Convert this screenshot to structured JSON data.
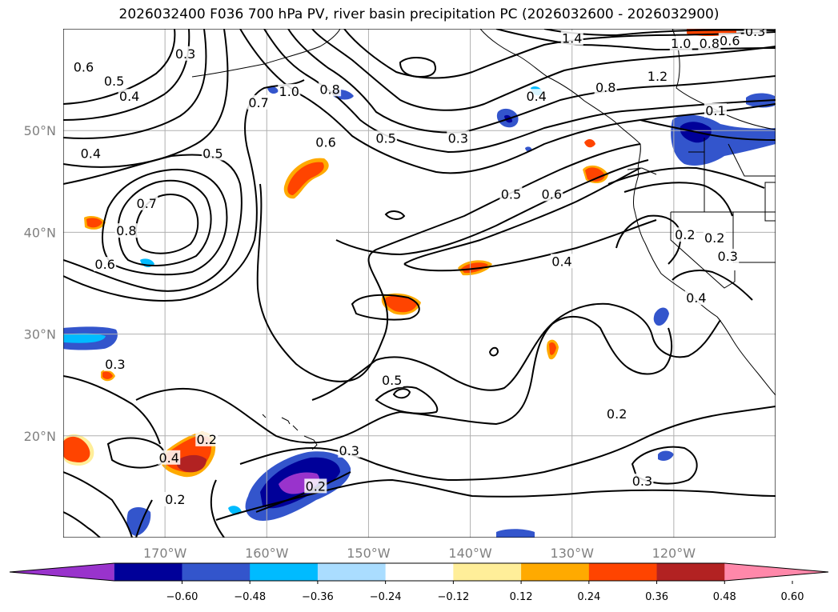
{
  "title": "2026032400 F036 700 hPa PV, river basin precipitation PC (2026032600 - 2026032900)",
  "map": {
    "lon_labels": [
      "170°W",
      "160°W",
      "150°W",
      "140°W",
      "130°W",
      "120°W"
    ],
    "lat_labels": [
      "50°N",
      "40°N",
      "30°N",
      "20°N"
    ],
    "lon_values": [
      -170,
      -160,
      -150,
      -140,
      -130,
      -120
    ],
    "lat_values": [
      50,
      40,
      30,
      20
    ],
    "lon_range": [
      -180,
      -110
    ],
    "lat_range": [
      10,
      60
    ],
    "contour_labels": [
      "0.6",
      "0.5",
      "0.4",
      "0.3",
      "0.7",
      "1.0",
      "0.8",
      "0.5",
      "0.3",
      "1.4",
      "1.0",
      "0.8",
      "0.6",
      "0.3",
      "0.4",
      "0.8",
      "1.2",
      "0.1",
      "0.4",
      "0.5",
      "0.6",
      "0.7",
      "0.8",
      "0.6",
      "0.5",
      "0.6",
      "0.4",
      "0.2",
      "0.3",
      "0.4",
      "0.3",
      "0.5",
      "0.4",
      "0.2",
      "0.3",
      "0.2",
      "0.2",
      "0.3",
      "0.2",
      "0.3"
    ],
    "contour_label_positions": [
      {
        "text": "0.6",
        "lon": -178.0,
        "lat": 56.2
      },
      {
        "text": "0.5",
        "lon": -175.0,
        "lat": 54.8
      },
      {
        "text": "0.4",
        "lon": -173.5,
        "lat": 53.3
      },
      {
        "text": "0.3",
        "lon": -168.0,
        "lat": 57.5
      },
      {
        "text": "0.7",
        "lon": -160.8,
        "lat": 52.7
      },
      {
        "text": "1.0",
        "lon": -157.8,
        "lat": 53.8
      },
      {
        "text": "0.8",
        "lon": -153.8,
        "lat": 54.0
      },
      {
        "text": "0.5",
        "lon": -148.3,
        "lat": 49.2
      },
      {
        "text": "0.3",
        "lon": -141.2,
        "lat": 49.2
      },
      {
        "text": "1.4",
        "lon": -130.0,
        "lat": 59.0
      },
      {
        "text": "1.0",
        "lon": -119.3,
        "lat": 58.5
      },
      {
        "text": "0.8",
        "lon": -116.5,
        "lat": 58.5
      },
      {
        "text": "0.6",
        "lon": -114.5,
        "lat": 58.8
      },
      {
        "text": "0.3",
        "lon": -112.0,
        "lat": 59.7
      },
      {
        "text": "0.4",
        "lon": -133.5,
        "lat": 53.3
      },
      {
        "text": "0.8",
        "lon": -126.7,
        "lat": 54.2
      },
      {
        "text": "1.2",
        "lon": -121.6,
        "lat": 55.3
      },
      {
        "text": "0.1",
        "lon": -115.9,
        "lat": 51.9
      },
      {
        "text": "0.4",
        "lon": -177.3,
        "lat": 47.7
      },
      {
        "text": "0.5",
        "lon": -165.3,
        "lat": 47.7
      },
      {
        "text": "0.6",
        "lon": -154.2,
        "lat": 48.8
      },
      {
        "text": "0.7",
        "lon": -171.8,
        "lat": 42.8
      },
      {
        "text": "0.8",
        "lon": -173.8,
        "lat": 40.1
      },
      {
        "text": "0.6",
        "lon": -175.9,
        "lat": 36.8
      },
      {
        "text": "0.5",
        "lon": -136.0,
        "lat": 43.7
      },
      {
        "text": "0.6",
        "lon": -132.0,
        "lat": 43.7
      },
      {
        "text": "0.4",
        "lon": -131.0,
        "lat": 37.1
      },
      {
        "text": "0.2",
        "lon": -118.9,
        "lat": 39.7
      },
      {
        "text": "0.3",
        "lon": -114.7,
        "lat": 37.6
      },
      {
        "text": "0.4",
        "lon": -117.8,
        "lat": 33.5
      },
      {
        "text": "0.3",
        "lon": -174.9,
        "lat": 27.0
      },
      {
        "text": "0.5",
        "lon": -147.7,
        "lat": 25.4
      },
      {
        "text": "0.4",
        "lon": -169.6,
        "lat": 17.8
      },
      {
        "text": "0.2",
        "lon": -165.9,
        "lat": 19.6
      },
      {
        "text": "0.3",
        "lon": -151.9,
        "lat": 18.5
      },
      {
        "text": "0.2",
        "lon": -169.0,
        "lat": 13.7
      },
      {
        "text": "0.2",
        "lon": -155.2,
        "lat": 15.0
      },
      {
        "text": "0.2",
        "lon": -125.6,
        "lat": 22.1
      },
      {
        "text": "0.3",
        "lon": -123.1,
        "lat": 15.5
      },
      {
        "text": "0.2",
        "lon": -116.0,
        "lat": 39.4
      }
    ]
  },
  "colorbar": {
    "tick_labels": [
      "−0.60",
      "−0.48",
      "−0.36",
      "−0.24",
      "−0.12",
      "0.12",
      "0.24",
      "0.36",
      "0.48",
      "0.60"
    ],
    "levels": [
      -0.6,
      -0.48,
      -0.36,
      -0.24,
      -0.12,
      0.12,
      0.24,
      0.36,
      0.48,
      0.6
    ],
    "colors": [
      "#9933cc",
      "#000099",
      "#3355cc",
      "#00bbff",
      "#aaddff",
      "#ffffff",
      "#ffee99",
      "#ffaa00",
      "#ff4400",
      "#b22222",
      "#ff88aa"
    ],
    "extend": "both"
  }
}
